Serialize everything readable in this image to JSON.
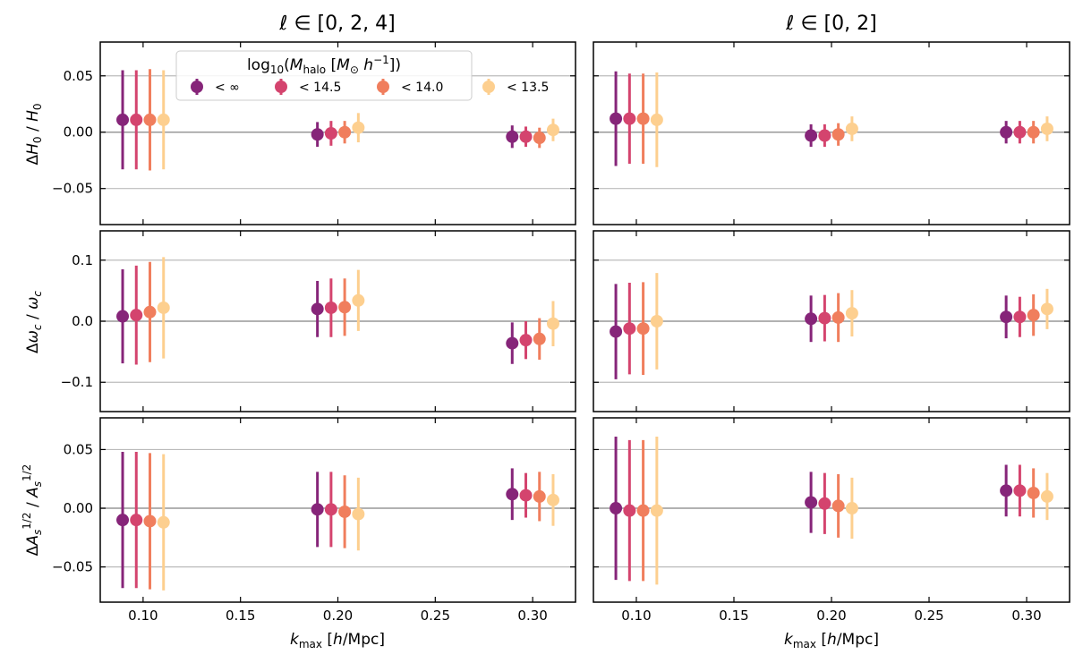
{
  "chart_data": {
    "type": "errorbar",
    "xlabel": "k_max [h/Mpc]",
    "xlim": [
      0.078,
      0.322
    ],
    "xticks": [
      0.1,
      0.15,
      0.2,
      0.25,
      0.3
    ],
    "xtick_labels": [
      "0.10",
      "0.15",
      "0.20",
      "0.25",
      "0.30"
    ],
    "columns": [
      {
        "title": "ℓ ∈ [0, 2, 4]"
      },
      {
        "title": "ℓ ∈ [0, 2]"
      }
    ],
    "rows": [
      {
        "ylabel": "ΔH0 / H0",
        "ylim": [
          -0.082,
          0.08
        ],
        "yticks": [
          -0.05,
          0.0,
          0.05
        ],
        "ytick_labels": [
          "−0.05",
          "0.00",
          "0.05"
        ],
        "ref_lines": [
          -0.05,
          0.0,
          0.05
        ]
      },
      {
        "ylabel": "Δωc / ωc",
        "ylim": [
          -0.148,
          0.148
        ],
        "yticks": [
          -0.1,
          0.0,
          0.1
        ],
        "ytick_labels": [
          "−0.1",
          "0.0",
          "0.1"
        ],
        "ref_lines": [
          -0.1,
          0.0,
          0.1
        ]
      },
      {
        "ylabel": "ΔAs^1/2 / As^1/2",
        "ylim": [
          -0.08,
          0.077
        ],
        "yticks": [
          -0.05,
          0.0,
          0.05
        ],
        "ytick_labels": [
          "−0.05",
          "0.00",
          "0.05"
        ],
        "ref_lines": [
          -0.05,
          0.0,
          0.05
        ]
      }
    ],
    "kmax": [
      0.1,
      0.2,
      0.3
    ],
    "offsets": [
      -0.0105,
      -0.0035,
      0.0035,
      0.0105
    ],
    "legend": {
      "title": "log10(M_halo [M⊙ h^-1])",
      "location": "top-center of top-left panel",
      "entries": [
        "< ∞",
        "< 14.5",
        "< 14.0",
        "< 13.5"
      ]
    },
    "series": [
      {
        "name": "< ∞",
        "color": "#862579",
        "panels": [
          [
            [
              0.011,
              0.044
            ],
            [
              -0.002,
              0.011
            ],
            [
              -0.004,
              0.01
            ]
          ],
          [
            [
              0.012,
              0.042
            ],
            [
              -0.003,
              0.01
            ],
            [
              0.0,
              0.01
            ]
          ],
          [
            [
              0.008,
              0.077
            ],
            [
              0.02,
              0.046
            ],
            [
              -0.036,
              0.034
            ]
          ],
          [
            [
              -0.017,
              0.078
            ],
            [
              0.004,
              0.038
            ],
            [
              0.007,
              0.035
            ]
          ],
          [
            [
              -0.01,
              0.058
            ],
            [
              -0.001,
              0.032
            ],
            [
              0.012,
              0.022
            ]
          ],
          [
            [
              0.0,
              0.061
            ],
            [
              0.005,
              0.026
            ],
            [
              0.015,
              0.022
            ]
          ]
        ]
      },
      {
        "name": "< 14.5",
        "color": "#d4446e",
        "panels": [
          [
            [
              0.011,
              0.044
            ],
            [
              -0.001,
              0.011
            ],
            [
              -0.004,
              0.009
            ]
          ],
          [
            [
              0.012,
              0.04
            ],
            [
              -0.003,
              0.01
            ],
            [
              0.0,
              0.01
            ]
          ],
          [
            [
              0.01,
              0.081
            ],
            [
              0.022,
              0.048
            ],
            [
              -0.031,
              0.031
            ]
          ],
          [
            [
              -0.012,
              0.075
            ],
            [
              0.005,
              0.038
            ],
            [
              0.007,
              0.033
            ]
          ],
          [
            [
              -0.01,
              0.058
            ],
            [
              -0.001,
              0.032
            ],
            [
              0.011,
              0.019
            ]
          ],
          [
            [
              -0.002,
              0.06
            ],
            [
              0.004,
              0.026
            ],
            [
              0.015,
              0.022
            ]
          ]
        ]
      },
      {
        "name": "< 14.0",
        "color": "#f07e5d",
        "panels": [
          [
            [
              0.011,
              0.045
            ],
            [
              0.0,
              0.01
            ],
            [
              -0.005,
              0.009
            ]
          ],
          [
            [
              0.012,
              0.04
            ],
            [
              -0.002,
              0.01
            ],
            [
              0.0,
              0.01
            ]
          ],
          [
            [
              0.015,
              0.082
            ],
            [
              0.023,
              0.047
            ],
            [
              -0.029,
              0.034
            ]
          ],
          [
            [
              -0.012,
              0.076
            ],
            [
              0.006,
              0.04
            ],
            [
              0.01,
              0.034
            ]
          ],
          [
            [
              -0.011,
              0.058
            ],
            [
              -0.003,
              0.031
            ],
            [
              0.01,
              0.021
            ]
          ],
          [
            [
              -0.002,
              0.06
            ],
            [
              0.002,
              0.027
            ],
            [
              0.013,
              0.021
            ]
          ]
        ]
      },
      {
        "name": "< 13.5",
        "color": "#fdcf8f",
        "panels": [
          [
            [
              0.011,
              0.044
            ],
            [
              0.004,
              0.013
            ],
            [
              0.002,
              0.01
            ]
          ],
          [
            [
              0.011,
              0.042
            ],
            [
              0.003,
              0.011
            ],
            [
              0.003,
              0.011
            ]
          ],
          [
            [
              0.022,
              0.083
            ],
            [
              0.034,
              0.05
            ],
            [
              -0.004,
              0.037
            ]
          ],
          [
            [
              0.0,
              0.079
            ],
            [
              0.013,
              0.038
            ],
            [
              0.02,
              0.033
            ]
          ],
          [
            [
              -0.012,
              0.058
            ],
            [
              -0.005,
              0.031
            ],
            [
              0.007,
              0.022
            ]
          ],
          [
            [
              -0.002,
              0.063
            ],
            [
              0.0,
              0.026
            ],
            [
              0.01,
              0.02
            ]
          ]
        ]
      }
    ]
  }
}
